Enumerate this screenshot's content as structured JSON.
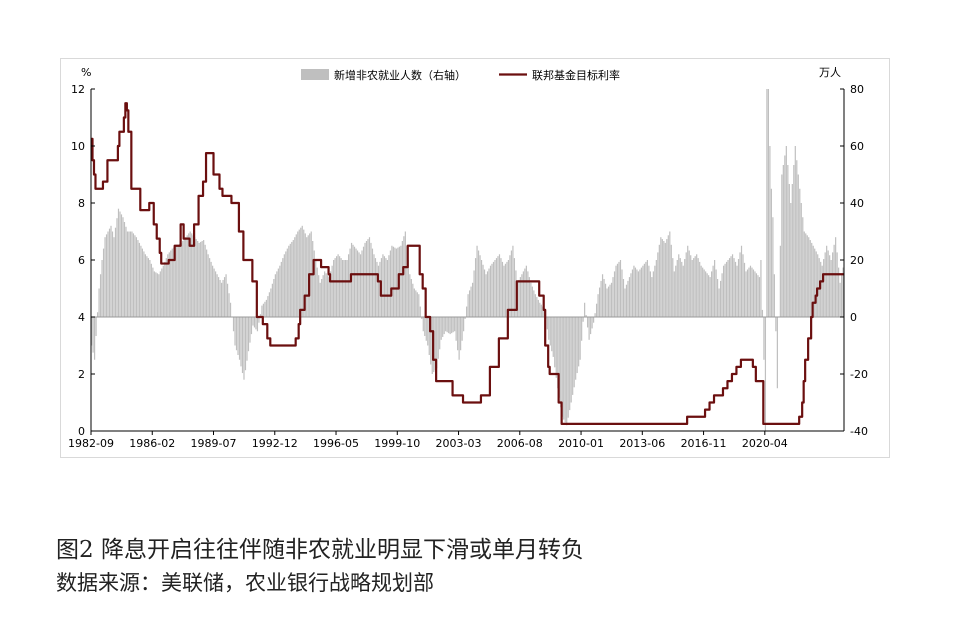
{
  "figure": {
    "title": "图2    降息开启往往伴随非农就业明显下滑或单月转负",
    "source": "数据来源：美联储，农业银行战略规划部"
  },
  "colors": {
    "payroll_bar": "#bfbfbf",
    "fed_rate_line": "#6b0f0f",
    "axis": "#000000",
    "frame": "#d9d9d9"
  },
  "chart_data": {
    "type": "bar+line",
    "legend_position": "top",
    "grid": false,
    "y_left": {
      "unit_label": "%",
      "range": [
        0,
        12
      ],
      "ticks": [
        "0",
        "2",
        "4",
        "6",
        "8",
        "10",
        "12"
      ]
    },
    "y_right": {
      "unit_label": "万人",
      "range": [
        -40,
        80
      ],
      "ticks": [
        "-40",
        "-20",
        "0",
        "20",
        "40",
        "60",
        "80"
      ]
    },
    "x_range": [
      "1982-09",
      "2024-09"
    ],
    "x_ticks": [
      "1982-09",
      "1986-02",
      "1989-07",
      "1992-12",
      "1996-05",
      "1999-10",
      "2003-03",
      "2006-08",
      "2010-01",
      "2013-06",
      "2016-11",
      "2020-04"
    ],
    "series": [
      {
        "name": "新增非农就业人数（右轴）",
        "kind": "bar",
        "axis": "right",
        "points": [
          [
            "1982-09",
            -10
          ],
          [
            "1982-11",
            -15
          ],
          [
            "1983-02",
            10
          ],
          [
            "1983-04",
            20
          ],
          [
            "1983-06",
            28
          ],
          [
            "1983-08",
            30
          ],
          [
            "1983-10",
            32
          ],
          [
            "1983-12",
            28
          ],
          [
            "1984-03",
            38
          ],
          [
            "1984-06",
            35
          ],
          [
            "1984-09",
            30
          ],
          [
            "1984-12",
            30
          ],
          [
            "1985-03",
            28
          ],
          [
            "1985-06",
            25
          ],
          [
            "1985-09",
            22
          ],
          [
            "1985-12",
            20
          ],
          [
            "1986-03",
            16
          ],
          [
            "1986-06",
            15
          ],
          [
            "1986-09",
            18
          ],
          [
            "1986-12",
            22
          ],
          [
            "1987-03",
            24
          ],
          [
            "1987-06",
            25
          ],
          [
            "1987-09",
            26
          ],
          [
            "1987-12",
            28
          ],
          [
            "1988-03",
            30
          ],
          [
            "1988-06",
            28
          ],
          [
            "1988-09",
            26
          ],
          [
            "1988-12",
            27
          ],
          [
            "1989-03",
            22
          ],
          [
            "1989-06",
            18
          ],
          [
            "1989-09",
            15
          ],
          [
            "1989-12",
            12
          ],
          [
            "1990-03",
            15
          ],
          [
            "1990-06",
            5
          ],
          [
            "1990-09",
            -10
          ],
          [
            "1990-12",
            -15
          ],
          [
            "1991-03",
            -22
          ],
          [
            "1991-06",
            -12
          ],
          [
            "1991-09",
            -3
          ],
          [
            "1991-12",
            -5
          ],
          [
            "1992-03",
            4
          ],
          [
            "1992-06",
            6
          ],
          [
            "1992-09",
            10
          ],
          [
            "1992-12",
            15
          ],
          [
            "1993-03",
            18
          ],
          [
            "1993-06",
            22
          ],
          [
            "1993-09",
            25
          ],
          [
            "1993-12",
            27
          ],
          [
            "1994-03",
            30
          ],
          [
            "1994-06",
            32
          ],
          [
            "1994-09",
            28
          ],
          [
            "1994-12",
            30
          ],
          [
            "1995-03",
            20
          ],
          [
            "1995-06",
            12
          ],
          [
            "1995-09",
            16
          ],
          [
            "1995-12",
            14
          ],
          [
            "1996-03",
            20
          ],
          [
            "1996-06",
            22
          ],
          [
            "1996-09",
            20
          ],
          [
            "1996-12",
            20
          ],
          [
            "1997-03",
            26
          ],
          [
            "1997-06",
            24
          ],
          [
            "1997-09",
            22
          ],
          [
            "1997-12",
            26
          ],
          [
            "1998-03",
            28
          ],
          [
            "1998-06",
            22
          ],
          [
            "1998-09",
            18
          ],
          [
            "1998-12",
            22
          ],
          [
            "1999-03",
            20
          ],
          [
            "1999-06",
            25
          ],
          [
            "1999-09",
            24
          ],
          [
            "1999-12",
            25
          ],
          [
            "2000-03",
            30
          ],
          [
            "2000-06",
            15
          ],
          [
            "2000-09",
            10
          ],
          [
            "2000-12",
            8
          ],
          [
            "2001-03",
            -5
          ],
          [
            "2001-06",
            -10
          ],
          [
            "2001-09",
            -20
          ],
          [
            "2001-12",
            -18
          ],
          [
            "2002-03",
            -8
          ],
          [
            "2002-06",
            -5
          ],
          [
            "2002-09",
            -6
          ],
          [
            "2002-12",
            -5
          ],
          [
            "2003-03",
            -15
          ],
          [
            "2003-06",
            -5
          ],
          [
            "2003-09",
            8
          ],
          [
            "2003-12",
            12
          ],
          [
            "2004-03",
            25
          ],
          [
            "2004-06",
            20
          ],
          [
            "2004-09",
            15
          ],
          [
            "2004-12",
            18
          ],
          [
            "2005-03",
            20
          ],
          [
            "2005-06",
            22
          ],
          [
            "2005-09",
            18
          ],
          [
            "2005-12",
            20
          ],
          [
            "2006-03",
            25
          ],
          [
            "2006-06",
            12
          ],
          [
            "2006-09",
            15
          ],
          [
            "2006-12",
            18
          ],
          [
            "2007-03",
            12
          ],
          [
            "2007-06",
            8
          ],
          [
            "2007-09",
            5
          ],
          [
            "2007-12",
            3
          ],
          [
            "2008-03",
            -8
          ],
          [
            "2008-06",
            -14
          ],
          [
            "2008-09",
            -25
          ],
          [
            "2008-12",
            -35
          ],
          [
            "2009-03",
            -38
          ],
          [
            "2009-06",
            -30
          ],
          [
            "2009-09",
            -22
          ],
          [
            "2009-12",
            -15
          ],
          [
            "2010-03",
            5
          ],
          [
            "2010-06",
            -8
          ],
          [
            "2010-09",
            -2
          ],
          [
            "2010-12",
            8
          ],
          [
            "2011-03",
            15
          ],
          [
            "2011-06",
            10
          ],
          [
            "2011-09",
            12
          ],
          [
            "2011-12",
            18
          ],
          [
            "2012-03",
            20
          ],
          [
            "2012-06",
            10
          ],
          [
            "2012-09",
            14
          ],
          [
            "2012-12",
            18
          ],
          [
            "2013-03",
            16
          ],
          [
            "2013-06",
            18
          ],
          [
            "2013-09",
            20
          ],
          [
            "2013-12",
            14
          ],
          [
            "2014-03",
            20
          ],
          [
            "2014-06",
            28
          ],
          [
            "2014-09",
            26
          ],
          [
            "2014-12",
            30
          ],
          [
            "2015-03",
            16
          ],
          [
            "2015-06",
            22
          ],
          [
            "2015-09",
            18
          ],
          [
            "2015-12",
            25
          ],
          [
            "2016-03",
            20
          ],
          [
            "2016-06",
            22
          ],
          [
            "2016-09",
            18
          ],
          [
            "2016-12",
            16
          ],
          [
            "2017-03",
            14
          ],
          [
            "2017-06",
            20
          ],
          [
            "2017-09",
            10
          ],
          [
            "2017-12",
            18
          ],
          [
            "2018-03",
            20
          ],
          [
            "2018-06",
            22
          ],
          [
            "2018-09",
            18
          ],
          [
            "2018-12",
            25
          ],
          [
            "2019-03",
            16
          ],
          [
            "2019-06",
            18
          ],
          [
            "2019-09",
            16
          ],
          [
            "2019-12",
            14
          ],
          [
            "2020-01",
            20
          ],
          [
            "2020-03",
            -15
          ],
          [
            "2020-04",
            -40
          ],
          [
            "2020-05",
            80
          ],
          [
            "2020-06",
            80
          ],
          [
            "2020-07",
            60
          ],
          [
            "2020-08",
            45
          ],
          [
            "2020-09",
            35
          ],
          [
            "2020-12",
            -25
          ],
          [
            "2021-03",
            50
          ],
          [
            "2021-06",
            60
          ],
          [
            "2021-09",
            40
          ],
          [
            "2021-12",
            60
          ],
          [
            "2022-03",
            45
          ],
          [
            "2022-06",
            30
          ],
          [
            "2022-09",
            28
          ],
          [
            "2022-12",
            25
          ],
          [
            "2023-03",
            22
          ],
          [
            "2023-06",
            18
          ],
          [
            "2023-09",
            25
          ],
          [
            "2023-12",
            20
          ],
          [
            "2024-03",
            28
          ],
          [
            "2024-06",
            12
          ],
          [
            "2024-09",
            20
          ]
        ]
      },
      {
        "name": "联邦基金目标利率",
        "kind": "line",
        "axis": "left",
        "points": [
          [
            "1982-09",
            10.25
          ],
          [
            "1982-10",
            9.5
          ],
          [
            "1982-11",
            9.0
          ],
          [
            "1982-12",
            8.5
          ],
          [
            "1983-02",
            8.5
          ],
          [
            "1983-05",
            8.75
          ],
          [
            "1983-08",
            9.5
          ],
          [
            "1983-12",
            9.5
          ],
          [
            "1984-03",
            10.0
          ],
          [
            "1984-04",
            10.5
          ],
          [
            "1984-07",
            11.0
          ],
          [
            "1984-08",
            11.5
          ],
          [
            "1984-09",
            11.25
          ],
          [
            "1984-10",
            10.5
          ],
          [
            "1984-12",
            8.5
          ],
          [
            "1985-03",
            8.5
          ],
          [
            "1985-06",
            7.75
          ],
          [
            "1985-12",
            8.0
          ],
          [
            "1986-03",
            7.25
          ],
          [
            "1986-05",
            6.75
          ],
          [
            "1986-07",
            6.25
          ],
          [
            "1986-08",
            5.875
          ],
          [
            "1987-01",
            6.0
          ],
          [
            "1987-05",
            6.5
          ],
          [
            "1987-09",
            7.25
          ],
          [
            "1987-11",
            6.75
          ],
          [
            "1988-03",
            6.5
          ],
          [
            "1988-06",
            7.25
          ],
          [
            "1988-09",
            8.25
          ],
          [
            "1988-12",
            8.75
          ],
          [
            "1989-02",
            9.75
          ],
          [
            "1989-05",
            9.75
          ],
          [
            "1989-07",
            9.0
          ],
          [
            "1989-11",
            8.5
          ],
          [
            "1990-01",
            8.25
          ],
          [
            "1990-07",
            8.0
          ],
          [
            "1990-12",
            7.0
          ],
          [
            "1991-03",
            6.0
          ],
          [
            "1991-09",
            5.25
          ],
          [
            "1991-12",
            4.0
          ],
          [
            "1992-04",
            3.75
          ],
          [
            "1992-07",
            3.25
          ],
          [
            "1992-09",
            3.0
          ],
          [
            "1994-01",
            3.0
          ],
          [
            "1994-02",
            3.25
          ],
          [
            "1994-04",
            3.75
          ],
          [
            "1994-05",
            4.25
          ],
          [
            "1994-08",
            4.75
          ],
          [
            "1994-11",
            5.5
          ],
          [
            "1995-02",
            6.0
          ],
          [
            "1995-07",
            5.75
          ],
          [
            "1995-12",
            5.5
          ],
          [
            "1996-01",
            5.25
          ],
          [
            "1997-03",
            5.5
          ],
          [
            "1998-09",
            5.25
          ],
          [
            "1998-11",
            4.75
          ],
          [
            "1999-06",
            5.0
          ],
          [
            "1999-11",
            5.5
          ],
          [
            "2000-02",
            5.75
          ],
          [
            "2000-05",
            6.5
          ],
          [
            "2000-12",
            6.5
          ],
          [
            "2001-01",
            5.5
          ],
          [
            "2001-03",
            5.0
          ],
          [
            "2001-05",
            4.0
          ],
          [
            "2001-08",
            3.5
          ],
          [
            "2001-10",
            2.5
          ],
          [
            "2001-12",
            1.75
          ],
          [
            "2002-11",
            1.25
          ],
          [
            "2003-06",
            1.0
          ],
          [
            "2004-06",
            1.25
          ],
          [
            "2004-12",
            2.25
          ],
          [
            "2005-06",
            3.25
          ],
          [
            "2005-12",
            4.25
          ],
          [
            "2006-06",
            5.25
          ],
          [
            "2007-08",
            5.25
          ],
          [
            "2007-09",
            4.75
          ],
          [
            "2007-12",
            4.25
          ],
          [
            "2008-01",
            3.0
          ],
          [
            "2008-03",
            2.25
          ],
          [
            "2008-04",
            2.0
          ],
          [
            "2008-10",
            1.0
          ],
          [
            "2008-12",
            0.25
          ],
          [
            "2015-12",
            0.5
          ],
          [
            "2016-12",
            0.75
          ],
          [
            "2017-03",
            1.0
          ],
          [
            "2017-06",
            1.25
          ],
          [
            "2017-12",
            1.5
          ],
          [
            "2018-03",
            1.75
          ],
          [
            "2018-06",
            2.0
          ],
          [
            "2018-09",
            2.25
          ],
          [
            "2018-12",
            2.5
          ],
          [
            "2019-07",
            2.5
          ],
          [
            "2019-08",
            2.25
          ],
          [
            "2019-10",
            1.75
          ],
          [
            "2020-03",
            0.25
          ],
          [
            "2022-02",
            0.25
          ],
          [
            "2022-03",
            0.5
          ],
          [
            "2022-05",
            1.0
          ],
          [
            "2022-06",
            1.75
          ],
          [
            "2022-07",
            2.5
          ],
          [
            "2022-09",
            3.25
          ],
          [
            "2022-11",
            4.0
          ],
          [
            "2022-12",
            4.5
          ],
          [
            "2023-02",
            4.75
          ],
          [
            "2023-03",
            5.0
          ],
          [
            "2023-05",
            5.25
          ],
          [
            "2023-07",
            5.5
          ],
          [
            "2024-09",
            5.5
          ]
        ]
      }
    ]
  }
}
